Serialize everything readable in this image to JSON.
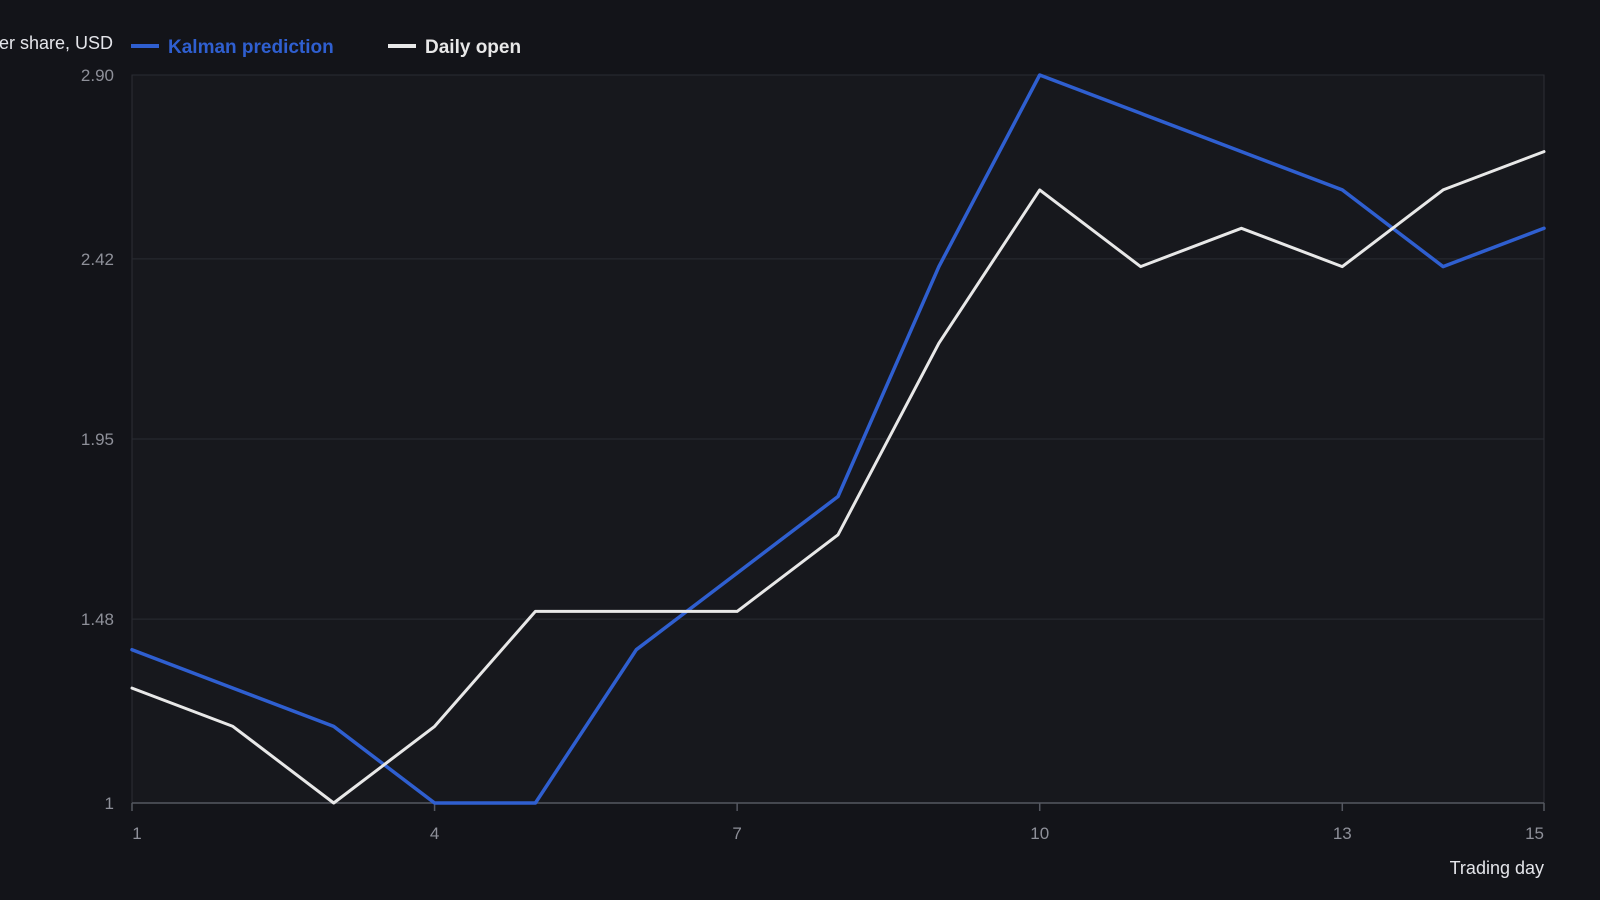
{
  "chart_data": {
    "type": "line",
    "title": "",
    "ylabel": "er share, USD",
    "xlabel": "Trading day",
    "x": [
      1,
      2,
      3,
      4,
      5,
      6,
      7,
      8,
      9,
      10,
      11,
      12,
      13,
      14,
      15
    ],
    "xticks": [
      "1",
      "4",
      "7",
      "10",
      "13",
      "15"
    ],
    "xtick_values": [
      1,
      4,
      7,
      10,
      13,
      15
    ],
    "yticks": [
      "1",
      "1.48",
      "1.95",
      "2.42",
      "2.90"
    ],
    "ytick_values": [
      1,
      1.48,
      1.95,
      2.42,
      2.9
    ],
    "xlim": [
      1,
      15
    ],
    "ylim": [
      1,
      2.9
    ],
    "grid": "horizontal",
    "legend_position": "top-left",
    "series": [
      {
        "name": "Kalman prediction",
        "color": "#2f5fd0",
        "values": [
          1.4,
          1.3,
          1.2,
          1.0,
          1.0,
          1.4,
          1.6,
          1.8,
          2.4,
          2.9,
          2.8,
          2.7,
          2.6,
          2.4,
          2.5
        ]
      },
      {
        "name": "Daily open",
        "color": "#e8e8e8",
        "values": [
          1.3,
          1.2,
          1.0,
          1.2,
          1.5,
          1.5,
          1.5,
          1.7,
          2.2,
          2.6,
          2.4,
          2.5,
          2.4,
          2.6,
          2.7
        ]
      }
    ]
  }
}
